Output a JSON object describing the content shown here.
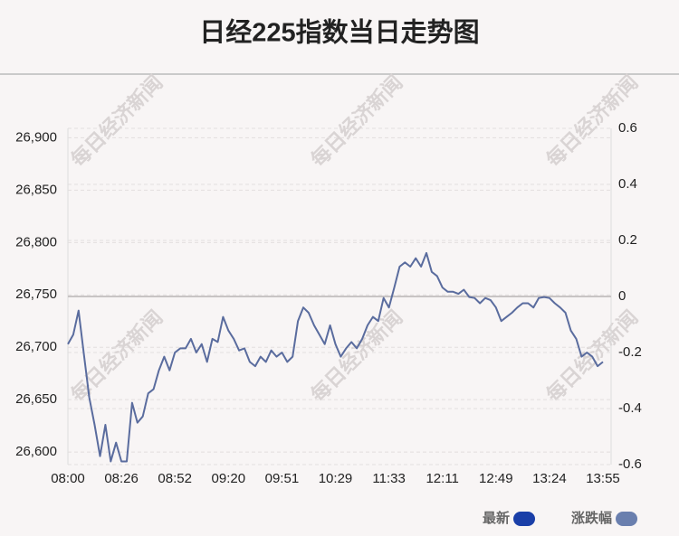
{
  "chart_data": {
    "type": "line",
    "title": "日经225指数当日走势图",
    "watermark": "每日经济新闻",
    "categories": [
      "08:00",
      null,
      null,
      null,
      null,
      null,
      null,
      null,
      null,
      null,
      "08:26",
      null,
      null,
      null,
      null,
      null,
      null,
      null,
      null,
      null,
      "08:52",
      null,
      null,
      null,
      null,
      null,
      null,
      null,
      null,
      null,
      "09:20",
      null,
      null,
      null,
      null,
      null,
      null,
      null,
      null,
      null,
      "09:51",
      null,
      null,
      null,
      null,
      null,
      null,
      null,
      null,
      null,
      "10:29",
      null,
      null,
      null,
      null,
      null,
      null,
      null,
      null,
      null,
      "11:33",
      null,
      null,
      null,
      null,
      null,
      null,
      null,
      null,
      null,
      "12:11",
      null,
      null,
      null,
      null,
      null,
      null,
      null,
      null,
      null,
      "12:49",
      null,
      null,
      null,
      null,
      null,
      null,
      null,
      null,
      null,
      "13:24",
      null,
      null,
      null,
      null,
      null,
      null,
      null,
      null,
      null,
      "13:55"
    ],
    "series": [
      {
        "name": "最新",
        "color": "#5a6c9e",
        "values": [
          26703,
          26712,
          26735,
          26693,
          26652,
          26626,
          26596,
          26626,
          26591,
          26609,
          26591,
          26591,
          26647,
          26628,
          26634,
          26656,
          26660,
          26678,
          26691,
          26678,
          26695,
          26699,
          26699,
          26708,
          26695,
          26703,
          26686,
          26708,
          26705,
          26729,
          26716,
          26708,
          26697,
          26699,
          26686,
          26682,
          26691,
          26686,
          26697,
          26691,
          26695,
          26686,
          26691,
          26725,
          26738,
          26733,
          26721,
          26712,
          26703,
          26721,
          26703,
          26691,
          26699,
          26705,
          26699,
          26708,
          26721,
          26729,
          26725,
          26747,
          26738,
          26757,
          26777,
          26781,
          26777,
          26785,
          26777,
          26790,
          26772,
          26768,
          26757,
          26753,
          26753,
          26751,
          26755,
          26748,
          26747,
          26742,
          26747,
          26745,
          26738,
          26725,
          26729,
          26733,
          26738,
          26742,
          26742,
          26738,
          26747,
          26748,
          26747,
          26742,
          26738,
          26733,
          26716,
          26708,
          26691,
          26695,
          26691,
          26682,
          26686
        ]
      }
    ],
    "legend": [
      {
        "name": "最新",
        "color": "#1a3fa8"
      },
      {
        "name": "涨跌幅",
        "color": "#6a7fae"
      }
    ],
    "ylim": [
      26588,
      26909
    ],
    "yticks": [
      {
        "value": 26600,
        "label": "26,600"
      },
      {
        "value": 26650,
        "label": "26,650"
      },
      {
        "value": 26700,
        "label": "26,700"
      },
      {
        "value": 26750,
        "label": "26,750"
      },
      {
        "value": 26800,
        "label": "26,800"
      },
      {
        "value": 26850,
        "label": "26,850"
      },
      {
        "value": 26900,
        "label": "26,900"
      }
    ],
    "y2lim": [
      -0.6,
      0.6
    ],
    "y2ticks": [
      -0.6,
      -0.4,
      -0.2,
      0,
      0.2,
      0.4,
      0.6
    ],
    "grid": true
  }
}
